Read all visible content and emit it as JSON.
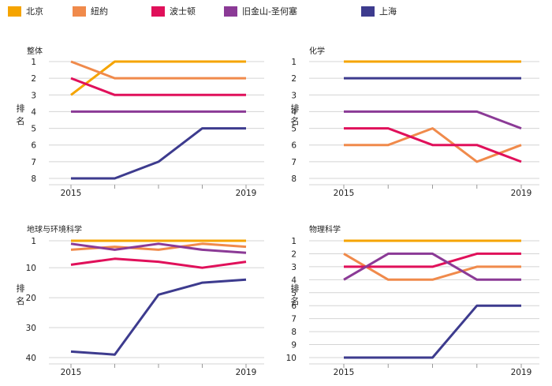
{
  "legend": [
    {
      "label": "北京",
      "color": "#f5a400"
    },
    {
      "label": "紐約",
      "color": "#f08a4b"
    },
    {
      "label": "波士顿",
      "color": "#e0105a"
    },
    {
      "label": "旧金山-圣何塞",
      "color": "#8b3a96"
    },
    {
      "label": "上海",
      "color": "#3d3b8e"
    }
  ],
  "axis_label": "排名",
  "chart_data": [
    {
      "type": "line",
      "title": "整体",
      "ylabel": "排名",
      "x": [
        2015,
        2016,
        2017,
        2018,
        2019
      ],
      "x_tick_labels": [
        "2015",
        "",
        "",
        "",
        "2019"
      ],
      "y_inverted": true,
      "ylim": [
        1,
        8
      ],
      "y_ticks": [
        1,
        2,
        3,
        4,
        5,
        6,
        7,
        8
      ],
      "series": [
        {
          "name": "北京",
          "values": [
            3,
            1,
            1,
            1,
            1
          ]
        },
        {
          "name": "紐約",
          "values": [
            1,
            2,
            2,
            2,
            2
          ]
        },
        {
          "name": "波士顿",
          "values": [
            2,
            3,
            3,
            3,
            3
          ]
        },
        {
          "name": "旧金山-圣何塞",
          "values": [
            4,
            4,
            4,
            4,
            4
          ]
        },
        {
          "name": "上海",
          "values": [
            8,
            8,
            7,
            5,
            5
          ]
        }
      ]
    },
    {
      "type": "line",
      "title": "化学",
      "ylabel": "排名",
      "x": [
        2015,
        2016,
        2017,
        2018,
        2019
      ],
      "x_tick_labels": [
        "2015",
        "",
        "",
        "",
        "2019"
      ],
      "y_inverted": true,
      "ylim": [
        1,
        8
      ],
      "y_ticks": [
        1,
        2,
        3,
        4,
        5,
        6,
        7,
        8
      ],
      "series": [
        {
          "name": "北京",
          "values": [
            1,
            1,
            1,
            1,
            1
          ]
        },
        {
          "name": "紐約",
          "values": [
            6,
            6,
            5,
            7,
            6
          ]
        },
        {
          "name": "波士顿",
          "values": [
            5,
            5,
            6,
            6,
            7
          ]
        },
        {
          "name": "旧金山-圣何塞",
          "values": [
            4,
            4,
            4,
            4,
            5
          ]
        },
        {
          "name": "上海",
          "values": [
            2,
            2,
            2,
            2,
            2
          ]
        }
      ]
    },
    {
      "type": "line",
      "title": "地球与环境科学",
      "ylabel": "排名",
      "x": [
        2015,
        2016,
        2017,
        2018,
        2019
      ],
      "x_tick_labels": [
        "2015",
        "",
        "",
        "",
        "2019"
      ],
      "y_inverted": true,
      "ylim": [
        1,
        40
      ],
      "y_ticks": [
        1,
        10,
        20,
        30,
        40
      ],
      "series": [
        {
          "name": "北京",
          "values": [
            1,
            1,
            1,
            1,
            1
          ]
        },
        {
          "name": "紐約",
          "values": [
            4,
            3,
            4,
            2,
            3
          ]
        },
        {
          "name": "波士顿",
          "values": [
            9,
            7,
            8,
            10,
            8
          ]
        },
        {
          "name": "旧金山-圣何塞",
          "values": [
            2,
            4,
            2,
            4,
            5
          ]
        },
        {
          "name": "上海",
          "values": [
            38,
            39,
            19,
            15,
            14
          ]
        }
      ]
    },
    {
      "type": "line",
      "title": "物理科学",
      "ylabel": "排名",
      "x": [
        2015,
        2016,
        2017,
        2018,
        2019
      ],
      "x_tick_labels": [
        "2015",
        "",
        "",
        "",
        "2019"
      ],
      "y_inverted": true,
      "ylim": [
        1,
        10
      ],
      "y_ticks": [
        1,
        2,
        3,
        4,
        5,
        6,
        7,
        8,
        9,
        10
      ],
      "series": [
        {
          "name": "北京",
          "values": [
            1,
            1,
            1,
            1,
            1
          ]
        },
        {
          "name": "紐約",
          "values": [
            2,
            4,
            4,
            3,
            3
          ]
        },
        {
          "name": "波士顿",
          "values": [
            3,
            3,
            3,
            2,
            2
          ]
        },
        {
          "name": "旧金山-圣何塞",
          "values": [
            4,
            2,
            2,
            4,
            4
          ]
        },
        {
          "name": "上海",
          "values": [
            10,
            10,
            10,
            6,
            6
          ]
        }
      ]
    }
  ]
}
